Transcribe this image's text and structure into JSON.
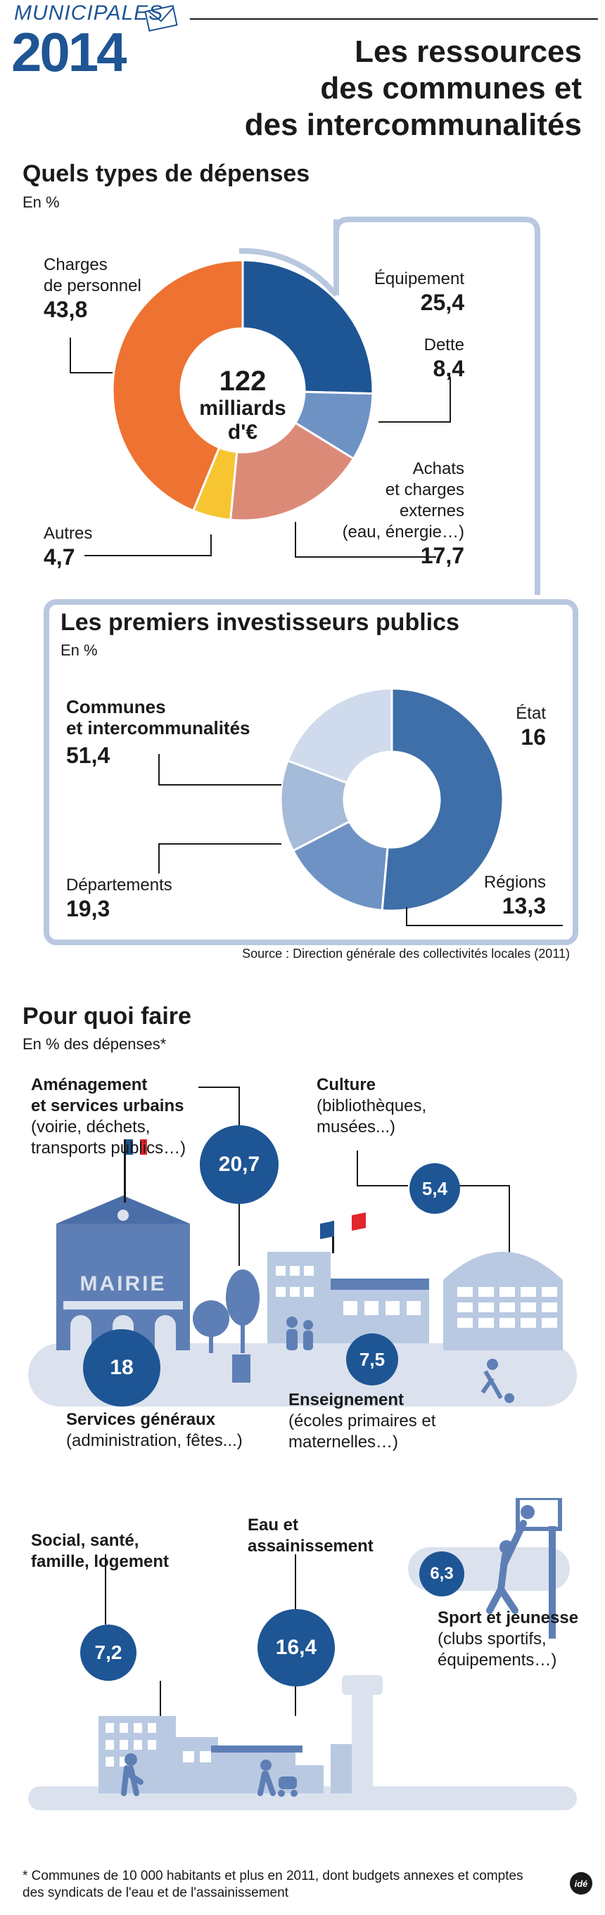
{
  "header": {
    "brand": "MUNICIPALES",
    "year": "2014",
    "title_lines": [
      "Les ressources",
      "des communes et",
      "des intercommunalités"
    ]
  },
  "colors": {
    "dark_blue": "#1e5594",
    "mid_blue": "#6e92c4",
    "light_blue": "#b9c9e2",
    "orange": "#ee7231",
    "salmon": "#dc8a78",
    "yellow": "#f6c531",
    "red": "#e3252c",
    "panel": "#b8c8df",
    "ground": "#dbe2ee",
    "building": "#5e7fb5"
  },
  "section1": {
    "title": "Quels types de dépenses",
    "unit": "En %",
    "center_lines": [
      "122",
      "milliards",
      "d'€"
    ]
  },
  "section2": {
    "title": "Les premiers investisseurs publics",
    "unit": "En %",
    "source": "Source : Direction générale des collectivités locales (2011)"
  },
  "chart_data": [
    {
      "type": "pie",
      "title": "Quels types de dépenses",
      "unit": "En %",
      "total_label": "122 milliards d'€",
      "slices": [
        {
          "label": "Équipement",
          "value": 25.4,
          "display": "25,4",
          "color": "#1e5594"
        },
        {
          "label": "Dette",
          "value": 8.4,
          "display": "8,4",
          "color": "#6e92c4"
        },
        {
          "label": "Achats et charges externes (eau, énergie…)",
          "value": 17.7,
          "display": "17,7",
          "color": "#dc8a78"
        },
        {
          "label": "Autres",
          "value": 4.7,
          "display": "4,7",
          "color": "#f6c531"
        },
        {
          "label": "Charges de personnel",
          "value": 43.8,
          "display": "43,8",
          "color": "#ee7231"
        }
      ]
    },
    {
      "type": "pie",
      "title": "Les premiers investisseurs publics",
      "unit": "En %",
      "slices": [
        {
          "label": "Communes et intercommunalités",
          "value": 51.4,
          "display": "51,4",
          "color": "#3e6fa8"
        },
        {
          "label": "État",
          "value": 16,
          "display": "16",
          "color": "#6e92c4"
        },
        {
          "label": "Régions",
          "value": 13.3,
          "display": "13,3",
          "color": "#a6bbd9"
        },
        {
          "label": "Départements",
          "value": 19.3,
          "display": "19,3",
          "color": "#cfdbec"
        }
      ]
    },
    {
      "type": "bar",
      "title": "Pour quoi faire",
      "unit": "En % des dépenses*",
      "categories": [
        "Aménagement et services urbains",
        "Culture",
        "Services généraux",
        "Enseignement",
        "Social, santé, famille, logement",
        "Eau et assainissement",
        "Sport et jeunesse"
      ],
      "values": [
        20.7,
        5.4,
        18,
        7.5,
        7.2,
        16.4,
        6.3
      ]
    }
  ],
  "pie1_labels": {
    "equipement": {
      "name": "Équipement",
      "value": "25,4"
    },
    "dette": {
      "name": "Dette",
      "value": "8,4"
    },
    "achats": {
      "lines": [
        "Achats",
        "et charges",
        "externes",
        "(eau, énergie…)"
      ],
      "value": "17,7"
    },
    "autres": {
      "name": "Autres",
      "value": "4,7"
    },
    "personnel": {
      "lines": [
        "Charges",
        "de personnel"
      ],
      "value": "43,8"
    }
  },
  "pie2_labels": {
    "communes": {
      "lines": [
        "Communes",
        "et intercommunalités"
      ],
      "value": "51,4"
    },
    "etat": {
      "name": "État",
      "value": "16"
    },
    "regions": {
      "name": "Régions",
      "value": "13,3"
    },
    "departements": {
      "name": "Départements",
      "value": "19,3"
    }
  },
  "section3": {
    "title": "Pour quoi faire",
    "unit": "En % des dépenses*",
    "amenagement": {
      "title": [
        "Aménagement",
        "et services urbains"
      ],
      "desc": [
        "(voirie, déchets,",
        "transports publics…)"
      ],
      "value": "20,7"
    },
    "culture": {
      "title": [
        "Culture"
      ],
      "desc": [
        "(bibliothèques,",
        "musées...)"
      ],
      "value": "5,4"
    },
    "services": {
      "title": [
        "Services généraux"
      ],
      "desc": [
        "(administration, fêtes...)"
      ],
      "value": "18"
    },
    "enseignement": {
      "title": [
        "Enseignement"
      ],
      "desc": [
        "(écoles primaires et",
        "maternelles…)"
      ],
      "value": "7,5"
    },
    "social": {
      "title": [
        "Social, santé,",
        "famille, logement"
      ],
      "value": "7,2"
    },
    "eau": {
      "title": [
        "Eau et",
        "assainissement"
      ],
      "value": "16,4"
    },
    "sport": {
      "title": [
        "Sport et jeunesse"
      ],
      "desc": [
        "(clubs sportifs,",
        "équipements…)"
      ],
      "value": "6,3"
    },
    "mairie": "MAIRIE"
  },
  "footer": {
    "note_lines": [
      "* Communes de 10 000 habitants et plus en 2011, dont budgets annexes et comptes",
      "des syndicats de l'eau et de l'assainissement"
    ],
    "logo": "idé"
  }
}
